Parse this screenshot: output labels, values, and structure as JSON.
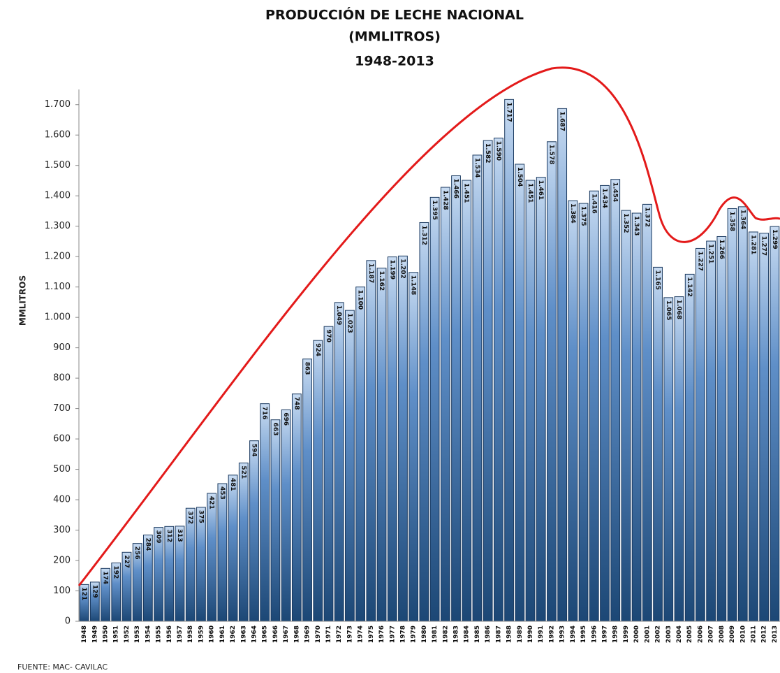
{
  "chart_data": {
    "type": "bar",
    "title": "PRODUCCIÓN DE LECHE NACIONAL",
    "subtitle": "(MMLITROS)",
    "period": "1948-2013",
    "y_label": "MMLITROS",
    "source": "FUENTE: MAC- CAVILAC",
    "categories": [
      "1948",
      "1949",
      "1950",
      "1951",
      "1952",
      "1953",
      "1954",
      "1955",
      "1956",
      "1957",
      "1958",
      "1959",
      "1960",
      "1961",
      "1962",
      "1963",
      "1964",
      "1965",
      "1966",
      "1967",
      "1968",
      "1969",
      "1970",
      "1971",
      "1972",
      "1973",
      "1974",
      "1975",
      "1976",
      "1977",
      "1978",
      "1979",
      "1980",
      "1981",
      "1982",
      "1983",
      "1984",
      "1985",
      "1986",
      "1987",
      "1988",
      "1989",
      "1990",
      "1991",
      "1992",
      "1993",
      "1994",
      "1995",
      "1996",
      "1997",
      "1998",
      "1999",
      "2000",
      "2001",
      "2002",
      "2003",
      "2004",
      "2005",
      "2006",
      "2007",
      "2008",
      "2009",
      "2010",
      "2011",
      "2012",
      "2013"
    ],
    "values": [
      121,
      129,
      174,
      192,
      227,
      256,
      284,
      309,
      312,
      313,
      372,
      375,
      421,
      453,
      481,
      521,
      594,
      716,
      663,
      696,
      748,
      863,
      924,
      970,
      1049,
      1023,
      1100,
      1187,
      1162,
      1199,
      1202,
      1148,
      1312,
      1395,
      1428,
      1466,
      1451,
      1534,
      1582,
      1590,
      1717,
      1504,
      1451,
      1461,
      1578,
      1687,
      1384,
      1375,
      1416,
      1434,
      1454,
      1352,
      1343,
      1372,
      1165,
      1065,
      1068,
      1142,
      1227,
      1251,
      1266,
      1358,
      1364,
      1281,
      1277,
      1299
    ],
    "value_labels": [
      "121",
      "129",
      "174",
      "192",
      "227",
      "256",
      "284",
      "309",
      "312",
      "313",
      "372",
      "375",
      "421",
      "453",
      "481",
      "521",
      "594",
      "716",
      "663",
      "696",
      "748",
      "863",
      "924",
      "970",
      "1.049",
      "1.023",
      "1.100",
      "1.187",
      "1.162",
      "1.199",
      "1.202",
      "1.148",
      "1.312",
      "1.395",
      "1.428",
      "1.466",
      "1.451",
      "1.534",
      "1.582",
      "1.590",
      "1.717",
      "1.504",
      "1.451",
      "1.461",
      "1.578",
      "1.687",
      "1.384",
      "1.375",
      "1.416",
      "1.434",
      "1.454",
      "1.352",
      "1.343",
      "1.372",
      "1.165",
      "1.065",
      "1.068",
      "1.142",
      "1.227",
      "1.251",
      "1.266",
      "1.358",
      "1.364",
      "1.281",
      "1.277",
      "1.299"
    ],
    "color": "#2e5f99",
    "ylim": [
      0,
      1750
    ],
    "yticks": [
      0,
      100,
      200,
      300,
      400,
      500,
      600,
      700,
      800,
      900,
      {
        "value": 1000,
        "label": "1.000"
      },
      {
        "value": 1100,
        "label": "1.100"
      },
      {
        "value": 1200,
        "label": "1.200"
      },
      {
        "value": 1300,
        "label": "1.300"
      },
      {
        "value": 1400,
        "label": "1.400"
      },
      {
        "value": 1500,
        "label": "1.500"
      },
      {
        "value": 1600,
        "label": "1.600"
      },
      {
        "value": 1700,
        "label": "1.700"
      }
    ],
    "grid": false
  }
}
